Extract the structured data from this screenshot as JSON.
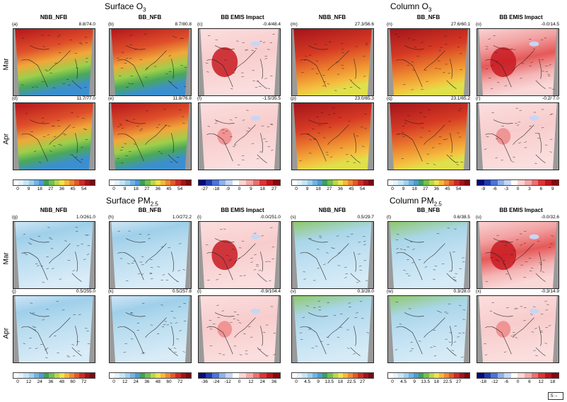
{
  "sections": [
    {
      "id": "surface-o3",
      "title_main": "Surface O",
      "title_sub": "3"
    },
    {
      "id": "column-o3",
      "title_main": "Column O",
      "title_sub": "3"
    },
    {
      "id": "surface-pm25",
      "title_main": "Surface PM",
      "title_sub": "2.5"
    },
    {
      "id": "column-pm25",
      "title_main": "Column PM",
      "title_sub": "2.5"
    }
  ],
  "column_titles": [
    "NBB_NFB",
    "BB_NFB",
    "BB EMIS Impact"
  ],
  "row_labels": [
    "Mar",
    "Apr"
  ],
  "panels": [
    {
      "letter": "(a)",
      "stat": "8.8/74.0",
      "kind": "abs-o3"
    },
    {
      "letter": "(b)",
      "stat": "8.7/80.8",
      "kind": "abs-o3"
    },
    {
      "letter": "(c)",
      "stat": "-0.4/48.4",
      "kind": "diff"
    },
    {
      "letter": "(m)",
      "stat": "27.3/56.6",
      "kind": "abs-co3"
    },
    {
      "letter": "(n)",
      "stat": "27.6/60.1",
      "kind": "abs-co3"
    },
    {
      "letter": "(o)",
      "stat": "-0.0/14.5",
      "kind": "diff-strong"
    },
    {
      "letter": "(d)",
      "stat": "11.7/77.0",
      "kind": "abs-o3"
    },
    {
      "letter": "(e)",
      "stat": "11.8/76.8",
      "kind": "abs-o3"
    },
    {
      "letter": "(f)",
      "stat": "-1.5/35.5",
      "kind": "diff-weak"
    },
    {
      "letter": "(p)",
      "stat": "23.0/65.3",
      "kind": "abs-co3"
    },
    {
      "letter": "(q)",
      "stat": "23.1/65.2",
      "kind": "abs-co3"
    },
    {
      "letter": "(r)",
      "stat": "-0.2/ 7.0",
      "kind": "diff-weak"
    },
    {
      "letter": "(g)",
      "stat": "1.0/261.0",
      "kind": "abs-pm"
    },
    {
      "letter": "(h)",
      "stat": "1.0/272.2",
      "kind": "abs-pm"
    },
    {
      "letter": "(i)",
      "stat": "-0.0/251.0",
      "kind": "diff"
    },
    {
      "letter": "(s)",
      "stat": "0.5/29.7",
      "kind": "abs-cpm"
    },
    {
      "letter": "(t)",
      "stat": "0.6/38.5",
      "kind": "abs-cpm"
    },
    {
      "letter": "(u)",
      "stat": "-0.0/32.6",
      "kind": "diff-strong"
    },
    {
      "letter": "(j)",
      "stat": "0.5/255.0",
      "kind": "abs-pm"
    },
    {
      "letter": "(k)",
      "stat": "0.5/257.8",
      "kind": "abs-pm"
    },
    {
      "letter": "(l)",
      "stat": "-0.9/104.4",
      "kind": "diff-weak"
    },
    {
      "letter": "(v)",
      "stat": "0.3/28.0",
      "kind": "abs-cpm"
    },
    {
      "letter": "(w)",
      "stat": "0.3/28.0",
      "kind": "abs-cpm"
    },
    {
      "letter": "(x)",
      "stat": "-0.3/14.9",
      "kind": "diff-weak"
    }
  ],
  "colorbars": [
    {
      "id": "cb-surface-o3-abs",
      "ticks": [
        "0",
        "9",
        "18",
        "27",
        "36",
        "45",
        "54"
      ],
      "palette": "abs"
    },
    {
      "id": "cb-surface-o3-abs2",
      "ticks": [
        "0",
        "9",
        "18",
        "27",
        "36",
        "45",
        "54"
      ],
      "palette": "abs"
    },
    {
      "id": "cb-surface-o3-diff",
      "ticks": [
        "-27",
        "-18",
        "-9",
        "0",
        "9",
        "18",
        "27"
      ],
      "palette": "diff"
    },
    {
      "id": "cb-column-o3-abs",
      "ticks": [
        "0",
        "9",
        "18",
        "27",
        "36",
        "45",
        "54"
      ],
      "palette": "abs"
    },
    {
      "id": "cb-column-o3-abs2",
      "ticks": [
        "0",
        "9",
        "18",
        "27",
        "36",
        "45",
        "54"
      ],
      "palette": "abs"
    },
    {
      "id": "cb-column-o3-diff",
      "ticks": [
        "-9",
        "-6",
        "-3",
        "0",
        "3",
        "6",
        "9"
      ],
      "palette": "diff"
    },
    {
      "id": "cb-surface-pm-abs",
      "ticks": [
        "0",
        "12",
        "24",
        "36",
        "48",
        "60",
        "72"
      ],
      "palette": "abs"
    },
    {
      "id": "cb-surface-pm-abs2",
      "ticks": [
        "0",
        "12",
        "24",
        "36",
        "48",
        "60",
        "72"
      ],
      "palette": "abs"
    },
    {
      "id": "cb-surface-pm-diff",
      "ticks": [
        "-36",
        "-24",
        "-12",
        "0",
        "12",
        "24",
        "36"
      ],
      "palette": "diff"
    },
    {
      "id": "cb-column-pm-abs",
      "ticks": [
        "0",
        "4.5",
        "9",
        "13.5",
        "18",
        "22.5",
        "27"
      ],
      "palette": "abs"
    },
    {
      "id": "cb-column-pm-abs2",
      "ticks": [
        "0",
        "4.5",
        "9",
        "13.5",
        "18",
        "22.5",
        "27"
      ],
      "palette": "abs"
    },
    {
      "id": "cb-column-pm-diff",
      "ticks": [
        "-18",
        "-12",
        "-6",
        "0",
        "6",
        "12",
        "18"
      ],
      "palette": "diff"
    }
  ],
  "vector_legend": "5→",
  "colors": {
    "abs": [
      "#ffffff",
      "#e4f2fb",
      "#c6e4f6",
      "#9fd0ef",
      "#6fb4e2",
      "#4b9bd6",
      "#3aa05a",
      "#73c04a",
      "#b8d84a",
      "#f2e24a",
      "#f6b73c",
      "#ef8a2f",
      "#e4582a",
      "#cc2b22",
      "#a3131a",
      "#7a0a12"
    ],
    "diff": [
      "#08097a",
      "#1f3cb0",
      "#4a73d8",
      "#8fb0ec",
      "#c6d6f5",
      "#ffffff",
      "#fbd4d4",
      "#f5a8a8",
      "#ec6f6f",
      "#dd3434",
      "#c0121a",
      "#8a050c"
    ]
  }
}
